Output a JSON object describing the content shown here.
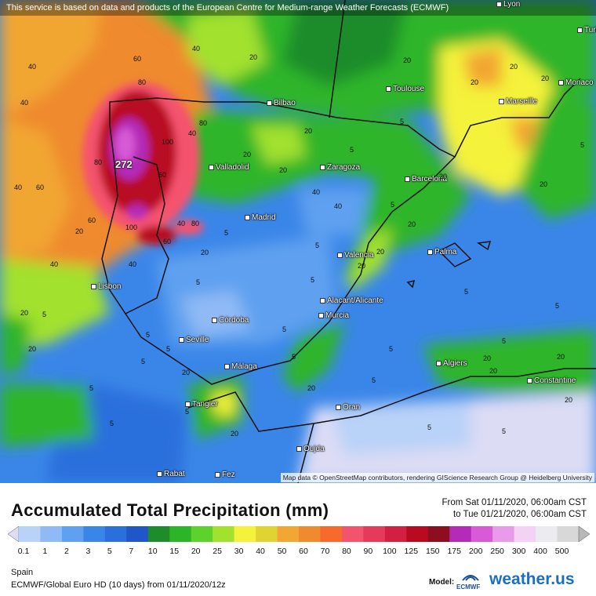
{
  "banner": "This service is based on data and products of the European Centre for Medium-range Weather Forecasts (ECMWF)",
  "attribution": "Map data © OpenStreetMap contributors, rendering GIScience Research Group @ Heidelberg University",
  "peak_label": "272",
  "cities": [
    {
      "name": "Lyon"
    },
    {
      "name": "Turin"
    },
    {
      "name": "Monaco"
    },
    {
      "name": "Toulouse"
    },
    {
      "name": "Marseille"
    },
    {
      "name": "Bilbao"
    },
    {
      "name": "Valladolid"
    },
    {
      "name": "Zaragoza"
    },
    {
      "name": "Barcelona"
    },
    {
      "name": "Madrid"
    },
    {
      "name": "Palma"
    },
    {
      "name": "Valencia"
    },
    {
      "name": "Lisbon"
    },
    {
      "name": "Alacant/Alicante"
    },
    {
      "name": "Murcia"
    },
    {
      "name": "Córdoba"
    },
    {
      "name": "Seville"
    },
    {
      "name": "Málaga"
    },
    {
      "name": "Algiers"
    },
    {
      "name": "Constantine"
    },
    {
      "name": "Tangier"
    },
    {
      "name": "Oran"
    },
    {
      "name": "Oujda"
    },
    {
      "name": "Rabat"
    },
    {
      "name": "Fez"
    }
  ],
  "contour_values": [
    "40",
    "60",
    "40",
    "40",
    "40",
    "20",
    "60",
    "80",
    "100",
    "80",
    "60",
    "40",
    "40",
    "60",
    "40",
    "80",
    "100",
    "40",
    "80",
    "60",
    "20",
    "20",
    "20",
    "20",
    "40",
    "20",
    "20",
    "5",
    "5",
    "20",
    "5",
    "5",
    "20",
    "40",
    "20",
    "5",
    "20",
    "5",
    "5",
    "5",
    "20",
    "5",
    "5",
    "20",
    "5",
    "5",
    "5",
    "5",
    "20",
    "20",
    "5",
    "20",
    "20",
    "20",
    "5",
    "20",
    "5",
    "20",
    "5",
    "20",
    "20",
    "5",
    "5",
    "20",
    "5",
    "5",
    "5",
    "5",
    "20"
  ],
  "legend": {
    "title": "Accumulated Total Precipitation (mm)",
    "from": "From Sat 01/11/2020, 06:00am CST",
    "to": "to Tue 01/21/2020, 06:00am CST",
    "ticks": [
      "0.1",
      "1",
      "2",
      "3",
      "5",
      "7",
      "10",
      "15",
      "20",
      "25",
      "30",
      "40",
      "50",
      "60",
      "70",
      "80",
      "90",
      "100",
      "125",
      "150",
      "175",
      "200",
      "250",
      "300",
      "400",
      "500"
    ],
    "colors": [
      "#dcdcf5",
      "#b9d2f8",
      "#8fbaf5",
      "#5fa0f0",
      "#3a86e8",
      "#2a6fdc",
      "#1f56c8",
      "#1e8c2a",
      "#2db52a",
      "#5cd22d",
      "#a2e12e",
      "#f4f23a",
      "#e0d432",
      "#f2a633",
      "#ef8a2e",
      "#f76a2c",
      "#f4536e",
      "#e63a5a",
      "#d22040",
      "#b80a20",
      "#8c0e20",
      "#b42bb8",
      "#d85ad6",
      "#e99ae8",
      "#f3d2f3",
      "#ececf0",
      "#d8d8d8",
      "#b8b8b8"
    ]
  },
  "region": "Spain",
  "model": "ECMWF/Global Euro HD (10 days)  from  01/11/2020/12z",
  "model_label": "Model:",
  "ecmwf_text": "ECMWF",
  "brand": "weather.us"
}
